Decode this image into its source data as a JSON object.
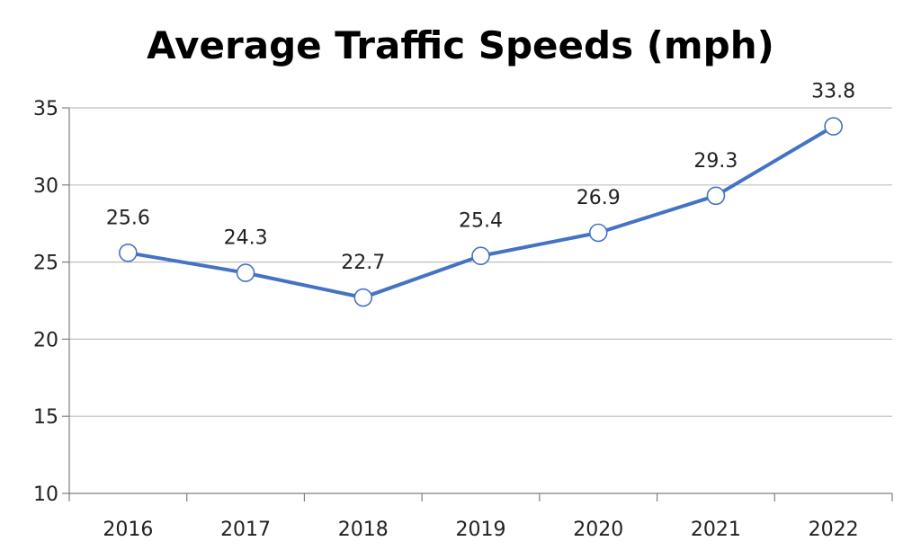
{
  "chart_data": {
    "type": "line",
    "title": "Average Traffic Speeds (mph)",
    "xlabel": "",
    "ylabel": "",
    "categories": [
      "2016",
      "2017",
      "2018",
      "2019",
      "2020",
      "2021",
      "2022"
    ],
    "series": [
      {
        "values": [
          25.6,
          24.3,
          22.7,
          25.4,
          26.9,
          29.3,
          33.8
        ],
        "data_labels": [
          "25.6",
          "24.3",
          "22.7",
          "25.4",
          "26.9",
          "29.3",
          "33.8"
        ],
        "color": "#4472C4",
        "marker": "circle-hollow"
      }
    ],
    "ylim": [
      10,
      35
    ],
    "yticks": [
      "10",
      "15",
      "20",
      "25",
      "30",
      "35"
    ],
    "grid": true,
    "legend": "none",
    "colors": {
      "line": "#4472C4",
      "marker_fill": "#ffffff",
      "gridline": "#bfbfbf",
      "axis": "#7f7f7f"
    }
  }
}
